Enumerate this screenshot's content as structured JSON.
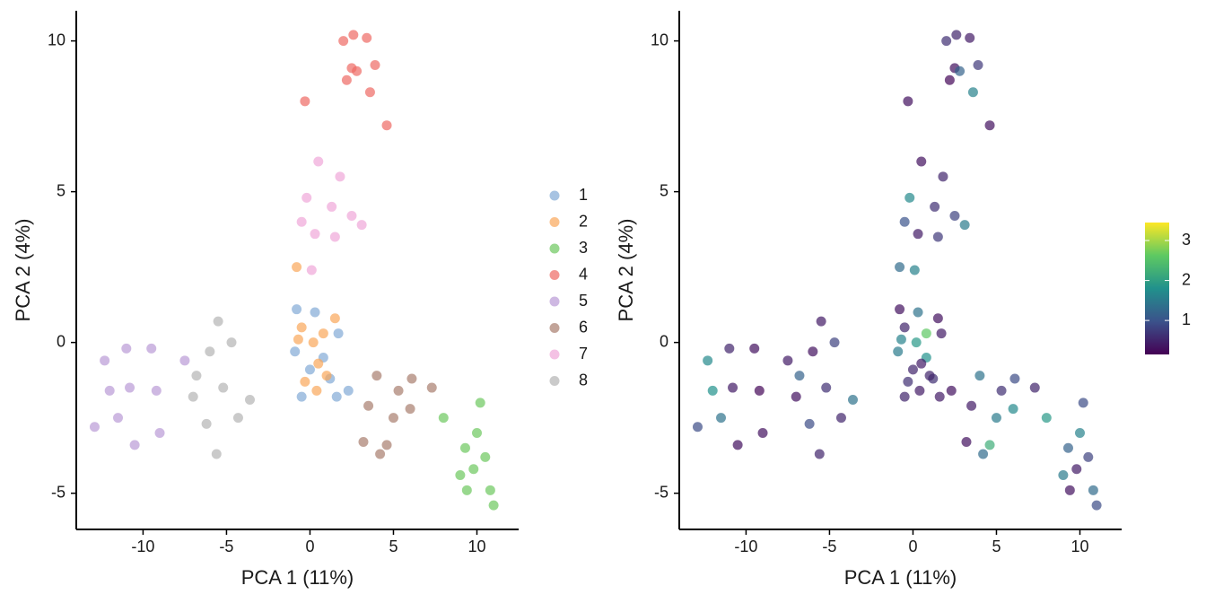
{
  "chart_data": [
    {
      "type": "scatter",
      "xlabel": "PCA 1 (11%)",
      "ylabel": "PCA 2 (4%)",
      "xlim": [
        -14,
        12.5
      ],
      "ylim": [
        -6.2,
        11
      ],
      "xticks": [
        -10,
        -5,
        0,
        5,
        10
      ],
      "yticks": [
        -5,
        0,
        5,
        10
      ],
      "opacity": 0.7,
      "series": [
        {
          "name": "1",
          "color": "#82a9d6",
          "x": [
            -0.8,
            0.3,
            -0.5,
            1.6,
            2.3,
            0.8,
            -0.9,
            1.7,
            0.0,
            1.2
          ],
          "y": [
            1.1,
            1.0,
            -1.8,
            -1.8,
            -1.6,
            -0.5,
            -0.3,
            0.3,
            -0.9,
            -1.2
          ]
        },
        {
          "name": "2",
          "color": "#f9a65a",
          "x": [
            -0.8,
            -0.5,
            0.2,
            1.5,
            0.5,
            -0.3,
            1.0,
            0.8,
            -0.7,
            0.4
          ],
          "y": [
            2.5,
            0.5,
            0.0,
            0.8,
            -0.7,
            -1.3,
            -1.1,
            0.3,
            0.1,
            -1.6
          ]
        },
        {
          "name": "3",
          "color": "#6cc85e",
          "x": [
            8.0,
            10.2,
            9.3,
            9.8,
            10.5,
            9.0,
            10.8,
            11.0,
            9.4,
            10.0
          ],
          "y": [
            -2.5,
            -2.0,
            -3.5,
            -4.2,
            -3.8,
            -4.4,
            -4.9,
            -5.4,
            -4.9,
            -3.0
          ]
        },
        {
          "name": "4",
          "color": "#ee6a64",
          "x": [
            -0.3,
            2.0,
            2.6,
            3.4,
            2.5,
            2.8,
            3.9,
            3.6,
            2.2,
            4.6
          ],
          "y": [
            8.0,
            10.0,
            10.2,
            10.1,
            9.1,
            9.0,
            9.2,
            8.3,
            8.7,
            7.2
          ]
        },
        {
          "name": "5",
          "color": "#b99ad6",
          "x": [
            -12.9,
            -12.3,
            -11.0,
            -9.5,
            -9.2,
            -10.8,
            -11.5,
            -10.5,
            -12.0,
            -9.0,
            -7.5
          ],
          "y": [
            -2.8,
            -0.6,
            -0.2,
            -0.2,
            -1.6,
            -1.5,
            -2.5,
            -3.4,
            -1.6,
            -3.0,
            -0.6
          ]
        },
        {
          "name": "6",
          "color": "#a87e6e",
          "x": [
            3.5,
            4.0,
            5.3,
            6.1,
            7.3,
            5.0,
            4.6,
            3.2,
            6.0,
            4.2
          ],
          "y": [
            -2.1,
            -1.1,
            -1.6,
            -1.2,
            -1.5,
            -2.5,
            -3.4,
            -3.3,
            -2.2,
            -3.7
          ]
        },
        {
          "name": "7",
          "color": "#f0a6d8",
          "x": [
            0.5,
            1.8,
            -0.2,
            1.3,
            2.5,
            3.1,
            0.3,
            1.5,
            0.1,
            -0.5
          ],
          "y": [
            6.0,
            5.5,
            4.8,
            4.5,
            4.2,
            3.9,
            3.6,
            3.5,
            2.4,
            4.0
          ]
        },
        {
          "name": "8",
          "color": "#b3b3b3",
          "x": [
            -5.5,
            -6.0,
            -4.7,
            -6.8,
            -5.2,
            -4.3,
            -3.6,
            -6.2,
            -5.6,
            -7.0
          ],
          "y": [
            0.7,
            -0.3,
            0.0,
            -1.1,
            -1.5,
            -2.5,
            -1.9,
            -2.7,
            -3.7,
            -1.8
          ]
        }
      ]
    },
    {
      "type": "scatter",
      "xlabel": "PCA 1 (11%)",
      "ylabel": "PCA 2 (4%)",
      "xlim": [
        -14,
        12.5
      ],
      "ylim": [
        -6.2,
        11
      ],
      "xticks": [
        -10,
        -5,
        0,
        5,
        10
      ],
      "yticks": [
        -5,
        0,
        5,
        10
      ],
      "opacity": 0.7,
      "colormap": "viridis",
      "clim": [
        0.15,
        3.45
      ],
      "cticks": [
        1,
        2,
        3
      ],
      "x": [
        -0.8,
        0.3,
        -0.5,
        1.6,
        2.3,
        0.8,
        -0.9,
        1.7,
        0.0,
        1.2,
        -0.8,
        -0.5,
        0.2,
        1.5,
        0.5,
        -0.3,
        1.0,
        0.8,
        -0.7,
        0.4,
        8.0,
        10.2,
        9.3,
        9.8,
        10.5,
        9.0,
        10.8,
        11.0,
        9.4,
        10.0,
        -0.3,
        2.0,
        2.6,
        3.4,
        2.5,
        2.8,
        3.9,
        3.6,
        2.2,
        4.6,
        -12.9,
        -12.3,
        -11.0,
        -9.5,
        -9.2,
        -10.8,
        -11.5,
        -10.5,
        -12.0,
        -9.0,
        -7.5,
        3.5,
        4.0,
        5.3,
        6.1,
        7.3,
        5.0,
        4.6,
        3.2,
        6.0,
        4.2,
        0.5,
        1.8,
        -0.2,
        1.3,
        2.5,
        3.1,
        0.3,
        1.5,
        0.1,
        -0.5,
        -5.5,
        -6.0,
        -4.7,
        -6.8,
        -5.2,
        -4.3,
        -3.6,
        -6.2,
        -5.6,
        -7.0
      ],
      "y": [
        1.1,
        1.0,
        -1.8,
        -1.8,
        -1.6,
        -0.5,
        -0.3,
        0.3,
        -0.9,
        -1.2,
        2.5,
        0.5,
        0.0,
        0.8,
        -0.7,
        -1.3,
        -1.1,
        0.3,
        0.1,
        -1.6,
        -2.5,
        -2.0,
        -3.5,
        -4.2,
        -3.8,
        -4.4,
        -4.9,
        -5.4,
        -4.9,
        -3.0,
        8.0,
        10.0,
        10.2,
        10.1,
        9.1,
        9.0,
        9.2,
        8.3,
        8.7,
        7.2,
        -2.8,
        -0.6,
        -0.2,
        -0.2,
        -1.6,
        -1.5,
        -2.5,
        -3.4,
        -1.6,
        -3.0,
        -0.6,
        -2.1,
        -1.1,
        -1.6,
        -1.2,
        -1.5,
        -2.5,
        -3.4,
        -3.3,
        -2.2,
        -3.7,
        6.0,
        5.5,
        4.8,
        4.5,
        4.2,
        3.9,
        3.6,
        3.5,
        2.4,
        4.0,
        0.7,
        -0.3,
        0.0,
        -1.1,
        -1.5,
        -2.5,
        -1.9,
        -2.7,
        -3.7,
        -1.8
      ],
      "color_values": [
        0.3,
        1.4,
        0.5,
        0.4,
        0.3,
        1.8,
        1.5,
        0.4,
        0.5,
        0.6,
        1.3,
        0.5,
        1.9,
        0.3,
        0.4,
        0.6,
        0.5,
        2.6,
        1.6,
        0.4,
        1.9,
        0.9,
        1.2,
        0.4,
        0.8,
        1.5,
        1.3,
        0.9,
        0.3,
        1.6,
        0.3,
        0.6,
        0.5,
        0.4,
        0.3,
        1.2,
        0.7,
        1.6,
        0.2,
        0.3,
        0.9,
        1.7,
        0.5,
        0.3,
        0.2,
        0.4,
        1.4,
        0.3,
        1.8,
        0.3,
        0.4,
        0.4,
        1.4,
        0.6,
        0.9,
        0.5,
        1.5,
        2.2,
        0.3,
        1.7,
        1.3,
        0.3,
        0.5,
        1.7,
        0.6,
        0.8,
        1.5,
        0.4,
        0.7,
        1.6,
        1.0,
        0.4,
        0.3,
        0.8,
        1.2,
        0.6,
        0.5,
        1.4,
        0.9,
        0.5,
        0.3
      ]
    }
  ]
}
